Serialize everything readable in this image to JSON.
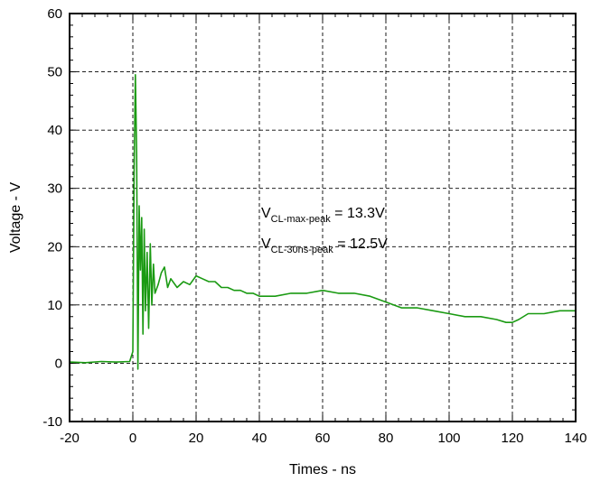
{
  "chart_data": {
    "type": "line",
    "title": "",
    "xlabel": "Times - ns",
    "ylabel": "Voltage - V",
    "xlim": [
      -20,
      140
    ],
    "ylim": [
      -10,
      60
    ],
    "x_ticks": [
      "-20",
      "0",
      "20",
      "40",
      "60",
      "80",
      "100",
      "120",
      "140"
    ],
    "y_ticks": [
      "-10",
      "0",
      "10",
      "20",
      "30",
      "40",
      "50",
      "60"
    ],
    "grid": true,
    "series_color": "#1a9a12",
    "series": [
      {
        "x": [
          -20,
          -15,
          -10,
          -5,
          -1,
          0,
          0.4,
          0.8,
          1.2,
          1.6,
          2.0,
          2.4,
          2.8,
          3.2,
          3.6,
          4.0,
          4.5,
          5.0,
          5.5,
          6.0,
          6.5,
          7.0,
          8,
          9,
          10,
          11,
          12,
          14,
          16,
          18,
          20,
          22,
          24,
          26,
          28,
          30,
          32,
          34,
          36,
          38,
          40,
          45,
          50,
          55,
          60,
          65,
          70,
          75,
          80,
          85,
          90,
          95,
          100,
          105,
          110,
          115,
          118,
          120,
          122,
          125,
          130,
          135,
          140
        ],
        "y": [
          0.2,
          0.1,
          0.3,
          0.2,
          0.3,
          2.0,
          33.0,
          49.5,
          36.0,
          -1.0,
          27.0,
          16.0,
          25.0,
          5.0,
          23.0,
          9.0,
          19.0,
          6.0,
          20.5,
          10.0,
          17.0,
          12.0,
          13.5,
          15.5,
          16.5,
          13.0,
          14.5,
          13.0,
          14.0,
          13.5,
          15.0,
          14.5,
          14.0,
          14.0,
          13.0,
          13.0,
          12.5,
          12.5,
          12.0,
          12.0,
          11.5,
          11.5,
          12.0,
          12.0,
          12.5,
          12.0,
          12.0,
          11.5,
          10.5,
          9.5,
          9.5,
          9.0,
          8.5,
          8.0,
          8.0,
          7.5,
          7.0,
          7.0,
          7.5,
          8.5,
          8.5,
          9.0,
          9.0
        ]
      }
    ],
    "annotations": [
      {
        "main": "V",
        "sub": "CL-max-peak",
        "tail": " = 13.3V"
      },
      {
        "main": "V",
        "sub": "CL-30ns-peak",
        "tail": " = 12.5V"
      }
    ]
  }
}
